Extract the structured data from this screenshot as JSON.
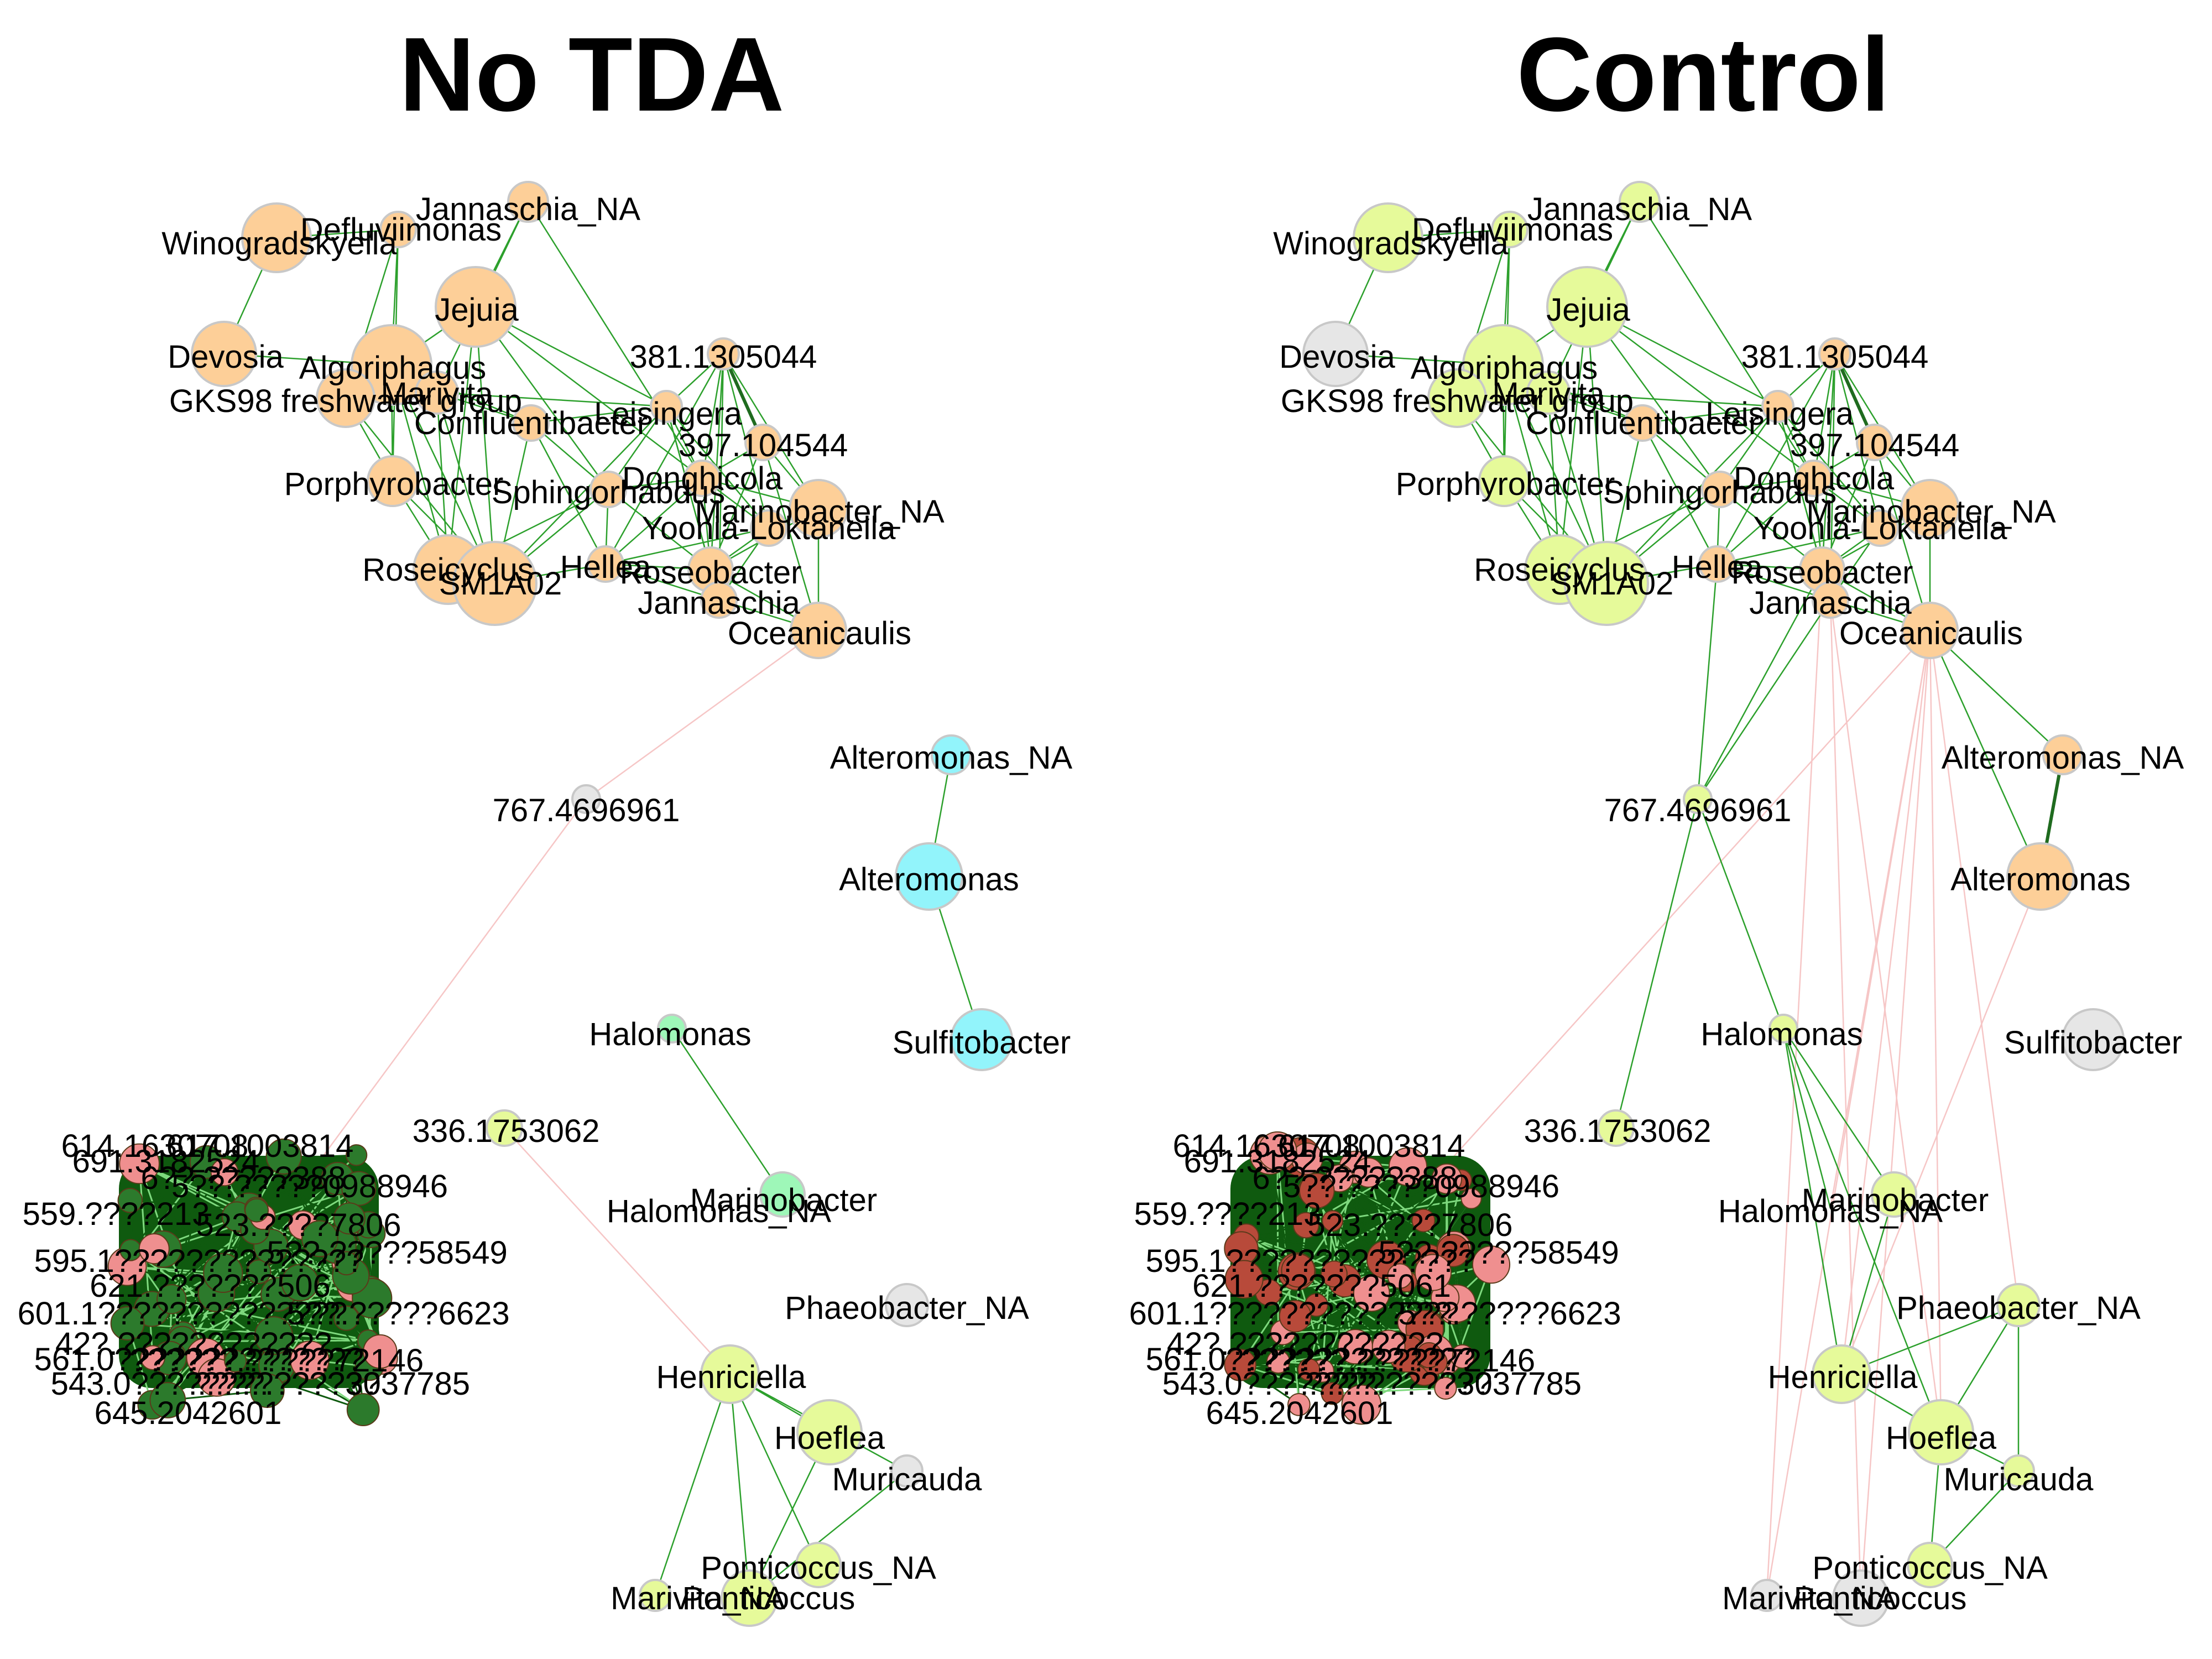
{
  "colors": {
    "orange": "#fdcf98",
    "cyan": "#92f4fb",
    "mint": "#9ef7b8",
    "yellow": "#e6fa9a",
    "gray": "#e6e6e6",
    "red": "#ef8f8f",
    "edge_positive": "#2ca02c",
    "edge_strong": "#1f6b1f",
    "edge_negative": "#f6c6c6",
    "cluster_dark": "#0f5a0f"
  },
  "panels": [
    {
      "title": "No TDA",
      "cluster_labels": [
        "614.1630708",
        "617.1003814",
        "691.3182524",
        "6??.?????388",
        "5??.?????0988946",
        "559.????213",
        "523.????7806",
        "5??.?????58549",
        "595.1??????????????",
        "5??.?????6623",
        "621.???????506",
        "601.1??????????????",
        "42?.????????????",
        "561.0??????????????",
        "??????.?????72146",
        "543.0??????????????",
        "????.????3037785",
        "645.2042601"
      ],
      "nodes": [
        {
          "id": "Winogradskyella",
          "color": "orange"
        },
        {
          "id": "Defluviimonas",
          "color": "orange"
        },
        {
          "id": "Jannaschia_NA",
          "color": "orange"
        },
        {
          "id": "Jejuia",
          "color": "orange"
        },
        {
          "id": "Devosia",
          "color": "orange"
        },
        {
          "id": "Algoriphagus",
          "color": "orange"
        },
        {
          "id": "GKS98 freshwater group",
          "color": "orange"
        },
        {
          "id": "Marivita",
          "color": "orange"
        },
        {
          "id": "Confluentibacter",
          "color": "orange"
        },
        {
          "id": "381.1305044",
          "color": "orange"
        },
        {
          "id": "Leisingera",
          "color": "orange"
        },
        {
          "id": "397.104544",
          "color": "orange"
        },
        {
          "id": "Porphyrobacter",
          "color": "orange"
        },
        {
          "id": "Sphingorhabdus",
          "color": "orange"
        },
        {
          "id": "Donghicola",
          "color": "orange"
        },
        {
          "id": "Marinobacter_NA",
          "color": "orange"
        },
        {
          "id": "Yoonia-Loktanella",
          "color": "orange"
        },
        {
          "id": "Roseicyclus",
          "color": "orange"
        },
        {
          "id": "SM1A02",
          "color": "orange"
        },
        {
          "id": "Hellea",
          "color": "orange"
        },
        {
          "id": "Roseobacter",
          "color": "orange"
        },
        {
          "id": "Jannaschia",
          "color": "orange"
        },
        {
          "id": "Oceanicaulis",
          "color": "orange"
        },
        {
          "id": "767.4696961",
          "color": "gray"
        },
        {
          "id": "Alteromonas_NA",
          "color": "cyan"
        },
        {
          "id": "Alteromonas",
          "color": "cyan"
        },
        {
          "id": "Sulfitobacter",
          "color": "cyan"
        },
        {
          "id": "Halomonas",
          "color": "mint"
        },
        {
          "id": "Marinobacter",
          "color": "mint"
        },
        {
          "id": "Halomonas_NA",
          "color": "mint"
        },
        {
          "id": "336.1753062",
          "color": "yellow"
        },
        {
          "id": "Phaeobacter_NA",
          "color": "gray"
        },
        {
          "id": "Henriciella",
          "color": "yellow"
        },
        {
          "id": "Hoeflea",
          "color": "yellow"
        },
        {
          "id": "Muricauda",
          "color": "gray"
        },
        {
          "id": "Ponticoccus_NA",
          "color": "yellow"
        },
        {
          "id": "Marivita_NA",
          "color": "yellow"
        },
        {
          "id": "Ponticoccus",
          "color": "yellow"
        }
      ]
    },
    {
      "title": "Control",
      "cluster_labels": [
        "614.1630708",
        "617.1003814",
        "691.3182524",
        "6??.?????388",
        "5??.?????0988946",
        "559.????213",
        "523.????7806",
        "5??.?????58549",
        "595.1??????????????",
        "5??.?????6623",
        "621.???????5061",
        "601.1??????????????",
        "42?.????????????",
        "561.0??????????????",
        "??????.?????72146",
        "543.0??????????????",
        "????.????3037785",
        "645.2042601"
      ],
      "nodes": [
        {
          "id": "Winogradskyella",
          "color": "yellow"
        },
        {
          "id": "Defluviimonas",
          "color": "yellow"
        },
        {
          "id": "Jannaschia_NA",
          "color": "yellow"
        },
        {
          "id": "Jejuia",
          "color": "yellow"
        },
        {
          "id": "Devosia",
          "color": "gray"
        },
        {
          "id": "Algoriphagus",
          "color": "yellow"
        },
        {
          "id": "GKS98 freshwater group",
          "color": "yellow"
        },
        {
          "id": "Marivita",
          "color": "yellow"
        },
        {
          "id": "Confluentibacter",
          "color": "orange"
        },
        {
          "id": "381.1305044",
          "color": "orange"
        },
        {
          "id": "Leisingera",
          "color": "orange"
        },
        {
          "id": "397.104544",
          "color": "orange"
        },
        {
          "id": "Porphyrobacter",
          "color": "yellow"
        },
        {
          "id": "Sphingorhabdus",
          "color": "orange"
        },
        {
          "id": "Donghicola",
          "color": "orange"
        },
        {
          "id": "Marinobacter_NA",
          "color": "orange"
        },
        {
          "id": "Yoonia-Loktanella",
          "color": "orange"
        },
        {
          "id": "Roseicyclus",
          "color": "yellow"
        },
        {
          "id": "SM1A02",
          "color": "yellow"
        },
        {
          "id": "Hellea",
          "color": "orange"
        },
        {
          "id": "Roseobacter",
          "color": "orange"
        },
        {
          "id": "Jannaschia",
          "color": "orange"
        },
        {
          "id": "Oceanicaulis",
          "color": "orange"
        },
        {
          "id": "767.4696961",
          "color": "yellow"
        },
        {
          "id": "Alteromonas_NA",
          "color": "orange"
        },
        {
          "id": "Alteromonas",
          "color": "orange"
        },
        {
          "id": "Sulfitobacter",
          "color": "gray"
        },
        {
          "id": "Halomonas",
          "color": "yellow"
        },
        {
          "id": "Marinobacter",
          "color": "yellow"
        },
        {
          "id": "Halomonas_NA",
          "color": "yellow"
        },
        {
          "id": "336.1753062",
          "color": "yellow"
        },
        {
          "id": "Phaeobacter_NA",
          "color": "yellow"
        },
        {
          "id": "Henriciella",
          "color": "yellow"
        },
        {
          "id": "Hoeflea",
          "color": "yellow"
        },
        {
          "id": "Muricauda",
          "color": "yellow"
        },
        {
          "id": "Ponticoccus_NA",
          "color": "yellow"
        },
        {
          "id": "Marivita_NA",
          "color": "gray"
        },
        {
          "id": "Ponticoccus",
          "color": "gray"
        }
      ]
    }
  ]
}
